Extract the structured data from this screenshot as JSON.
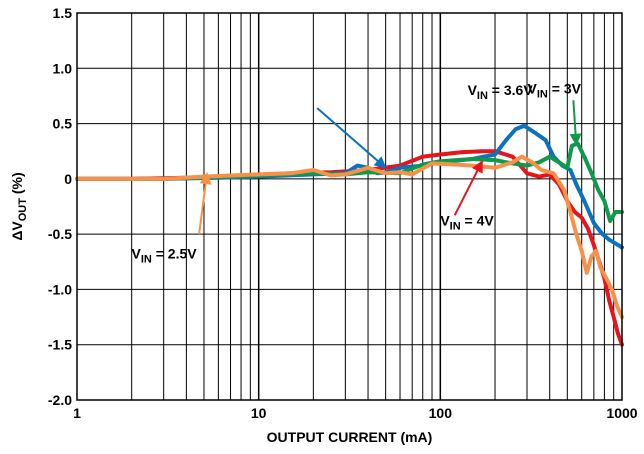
{
  "chart_data": {
    "type": "line",
    "title": "",
    "xlabel": "OUTPUT CURRENT (mA)",
    "ylabel_parts": [
      "ΔV",
      "OUT",
      " (%)"
    ],
    "xscale": "log",
    "xlim": [
      1,
      1000
    ],
    "ylim": [
      -2.0,
      1.5
    ],
    "grid": true,
    "x_ticks": [
      {
        "value": 1,
        "label": "1"
      },
      {
        "value": 10,
        "label": "10"
      },
      {
        "value": 100,
        "label": "100"
      },
      {
        "value": 1000,
        "label": "1000"
      }
    ],
    "y_ticks": [
      {
        "value": 1.5,
        "label": "1.5"
      },
      {
        "value": 1.0,
        "label": "1.0"
      },
      {
        "value": 0.5,
        "label": "0.5"
      },
      {
        "value": 0,
        "label": "0"
      },
      {
        "value": -0.5,
        "label": "-0.5"
      },
      {
        "value": -1.0,
        "label": "-1.0"
      },
      {
        "value": -1.5,
        "label": "-1.5"
      },
      {
        "value": -2.0,
        "label": "-2.0"
      }
    ],
    "series": [
      {
        "color": "#e8141b",
        "label": {
          "base": "V",
          "sub": "IN",
          "rest": " = 4V"
        },
        "points": [
          [
            1,
            0
          ],
          [
            2,
            0
          ],
          [
            4,
            0.01
          ],
          [
            8,
            0.03
          ],
          [
            15,
            0.05
          ],
          [
            25,
            0.06
          ],
          [
            40,
            0.08
          ],
          [
            60,
            0.12
          ],
          [
            80,
            0.2
          ],
          [
            100,
            0.22
          ],
          [
            130,
            0.24
          ],
          [
            170,
            0.25
          ],
          [
            200,
            0.25
          ],
          [
            250,
            0.2
          ],
          [
            300,
            0.05
          ],
          [
            350,
            0.02
          ],
          [
            400,
            0.04
          ],
          [
            450,
            -0.05
          ],
          [
            500,
            -0.2
          ],
          [
            550,
            -0.3
          ],
          [
            600,
            -0.35
          ],
          [
            650,
            -0.45
          ],
          [
            700,
            -0.6
          ],
          [
            750,
            -0.75
          ],
          [
            800,
            -0.9
          ],
          [
            850,
            -1.1
          ],
          [
            900,
            -1.25
          ],
          [
            950,
            -1.4
          ],
          [
            1000,
            -1.5
          ]
        ]
      },
      {
        "color": "#0a72bf",
        "label": {
          "base": "V",
          "sub": "IN",
          "rest": " = 3V"
        },
        "points": [
          [
            1,
            0
          ],
          [
            3,
            0
          ],
          [
            6,
            0.01
          ],
          [
            10,
            0.02
          ],
          [
            20,
            0.04
          ],
          [
            30,
            0.05
          ],
          [
            35,
            0.12
          ],
          [
            40,
            0.1
          ],
          [
            45,
            0.05
          ],
          [
            50,
            0.06
          ],
          [
            60,
            0.1
          ],
          [
            80,
            0.12
          ],
          [
            100,
            0.15
          ],
          [
            150,
            0.18
          ],
          [
            200,
            0.22
          ],
          [
            230,
            0.35
          ],
          [
            260,
            0.45
          ],
          [
            290,
            0.48
          ],
          [
            330,
            0.42
          ],
          [
            380,
            0.35
          ],
          [
            420,
            0.2
          ],
          [
            470,
            0.12
          ],
          [
            520,
            0.08
          ],
          [
            560,
            -0.05
          ],
          [
            620,
            -0.2
          ],
          [
            700,
            -0.4
          ],
          [
            780,
            -0.5
          ],
          [
            850,
            -0.55
          ],
          [
            1000,
            -0.62
          ]
        ]
      },
      {
        "color": "#0f9a4a",
        "label": {
          "base": "V",
          "sub": "IN",
          "rest": " = 3.6V"
        },
        "points": [
          [
            1,
            0
          ],
          [
            3,
            0
          ],
          [
            5,
            0.01
          ],
          [
            10,
            0.03
          ],
          [
            20,
            0.05
          ],
          [
            30,
            0.04
          ],
          [
            40,
            0.06
          ],
          [
            60,
            0.05
          ],
          [
            80,
            0.13
          ],
          [
            100,
            0.16
          ],
          [
            150,
            0.18
          ],
          [
            200,
            0.17
          ],
          [
            250,
            0.14
          ],
          [
            300,
            0.12
          ],
          [
            350,
            0.15
          ],
          [
            400,
            0.2
          ],
          [
            450,
            0.15
          ],
          [
            500,
            0.1
          ],
          [
            530,
            0.3
          ],
          [
            570,
            0.32
          ],
          [
            620,
            0.2
          ],
          [
            680,
            0.05
          ],
          [
            740,
            -0.1
          ],
          [
            800,
            -0.2
          ],
          [
            860,
            -0.38
          ],
          [
            920,
            -0.3
          ],
          [
            1000,
            -0.3
          ]
        ]
      },
      {
        "color": "#f7914a",
        "label": {
          "base": "V",
          "sub": "IN",
          "rest": " = 2.5V"
        },
        "points": [
          [
            1,
            0
          ],
          [
            3,
            0
          ],
          [
            5,
            0.02
          ],
          [
            10,
            0.04
          ],
          [
            15,
            0.05
          ],
          [
            20,
            0.08
          ],
          [
            25,
            0.03
          ],
          [
            30,
            0.04
          ],
          [
            40,
            0.1
          ],
          [
            50,
            0.05
          ],
          [
            60,
            0.06
          ],
          [
            70,
            0.04
          ],
          [
            90,
            0.14
          ],
          [
            120,
            0.13
          ],
          [
            150,
            0.12
          ],
          [
            200,
            0.1
          ],
          [
            250,
            0.15
          ],
          [
            280,
            0.2
          ],
          [
            320,
            0.15
          ],
          [
            360,
            0.08
          ],
          [
            420,
            0.05
          ],
          [
            480,
            -0.1
          ],
          [
            520,
            -0.3
          ],
          [
            560,
            -0.5
          ],
          [
            600,
            -0.65
          ],
          [
            640,
            -0.85
          ],
          [
            680,
            -0.7
          ],
          [
            720,
            -0.65
          ],
          [
            760,
            -0.8
          ],
          [
            820,
            -0.9
          ],
          [
            880,
            -1.0
          ],
          [
            940,
            -1.15
          ],
          [
            1000,
            -1.25
          ]
        ]
      }
    ],
    "annotations": [
      {
        "series": 1,
        "text_x": 2.48,
        "text_y": 0.77,
        "tail_x": 21,
        "tail_y": 0.64,
        "head_x": 50,
        "head_y": 0.1,
        "anchor": "start"
      },
      {
        "series": 2,
        "text_x": 2.15,
        "text_y": 0.76,
        "tail_x": 540,
        "tail_y": 0.71,
        "head_x": 560,
        "head_y": 0.31,
        "anchor": "start"
      },
      {
        "series": 0,
        "text_x": 2.0,
        "text_y": -0.42,
        "tail_x": 120,
        "tail_y": -0.33,
        "head_x": 170,
        "head_y": 0.16,
        "anchor": "start"
      },
      {
        "series": 3,
        "text_x": 0.3,
        "text_y": -0.72,
        "tail_x": 4.7,
        "tail_y": -0.5,
        "head_x": 5.2,
        "head_y": 0.05,
        "anchor": "start"
      }
    ]
  }
}
